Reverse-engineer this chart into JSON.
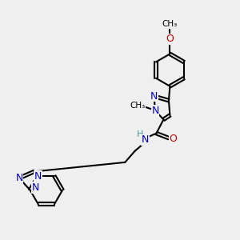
{
  "bg_color": "#efefef",
  "bond_color": "#000000",
  "n_color": "#0000cc",
  "o_color": "#cc0000",
  "h_color": "#4a9a9a",
  "font_size": 9,
  "lw": 1.5,
  "xlim": [
    0,
    10
  ],
  "ylim": [
    0,
    10
  ]
}
